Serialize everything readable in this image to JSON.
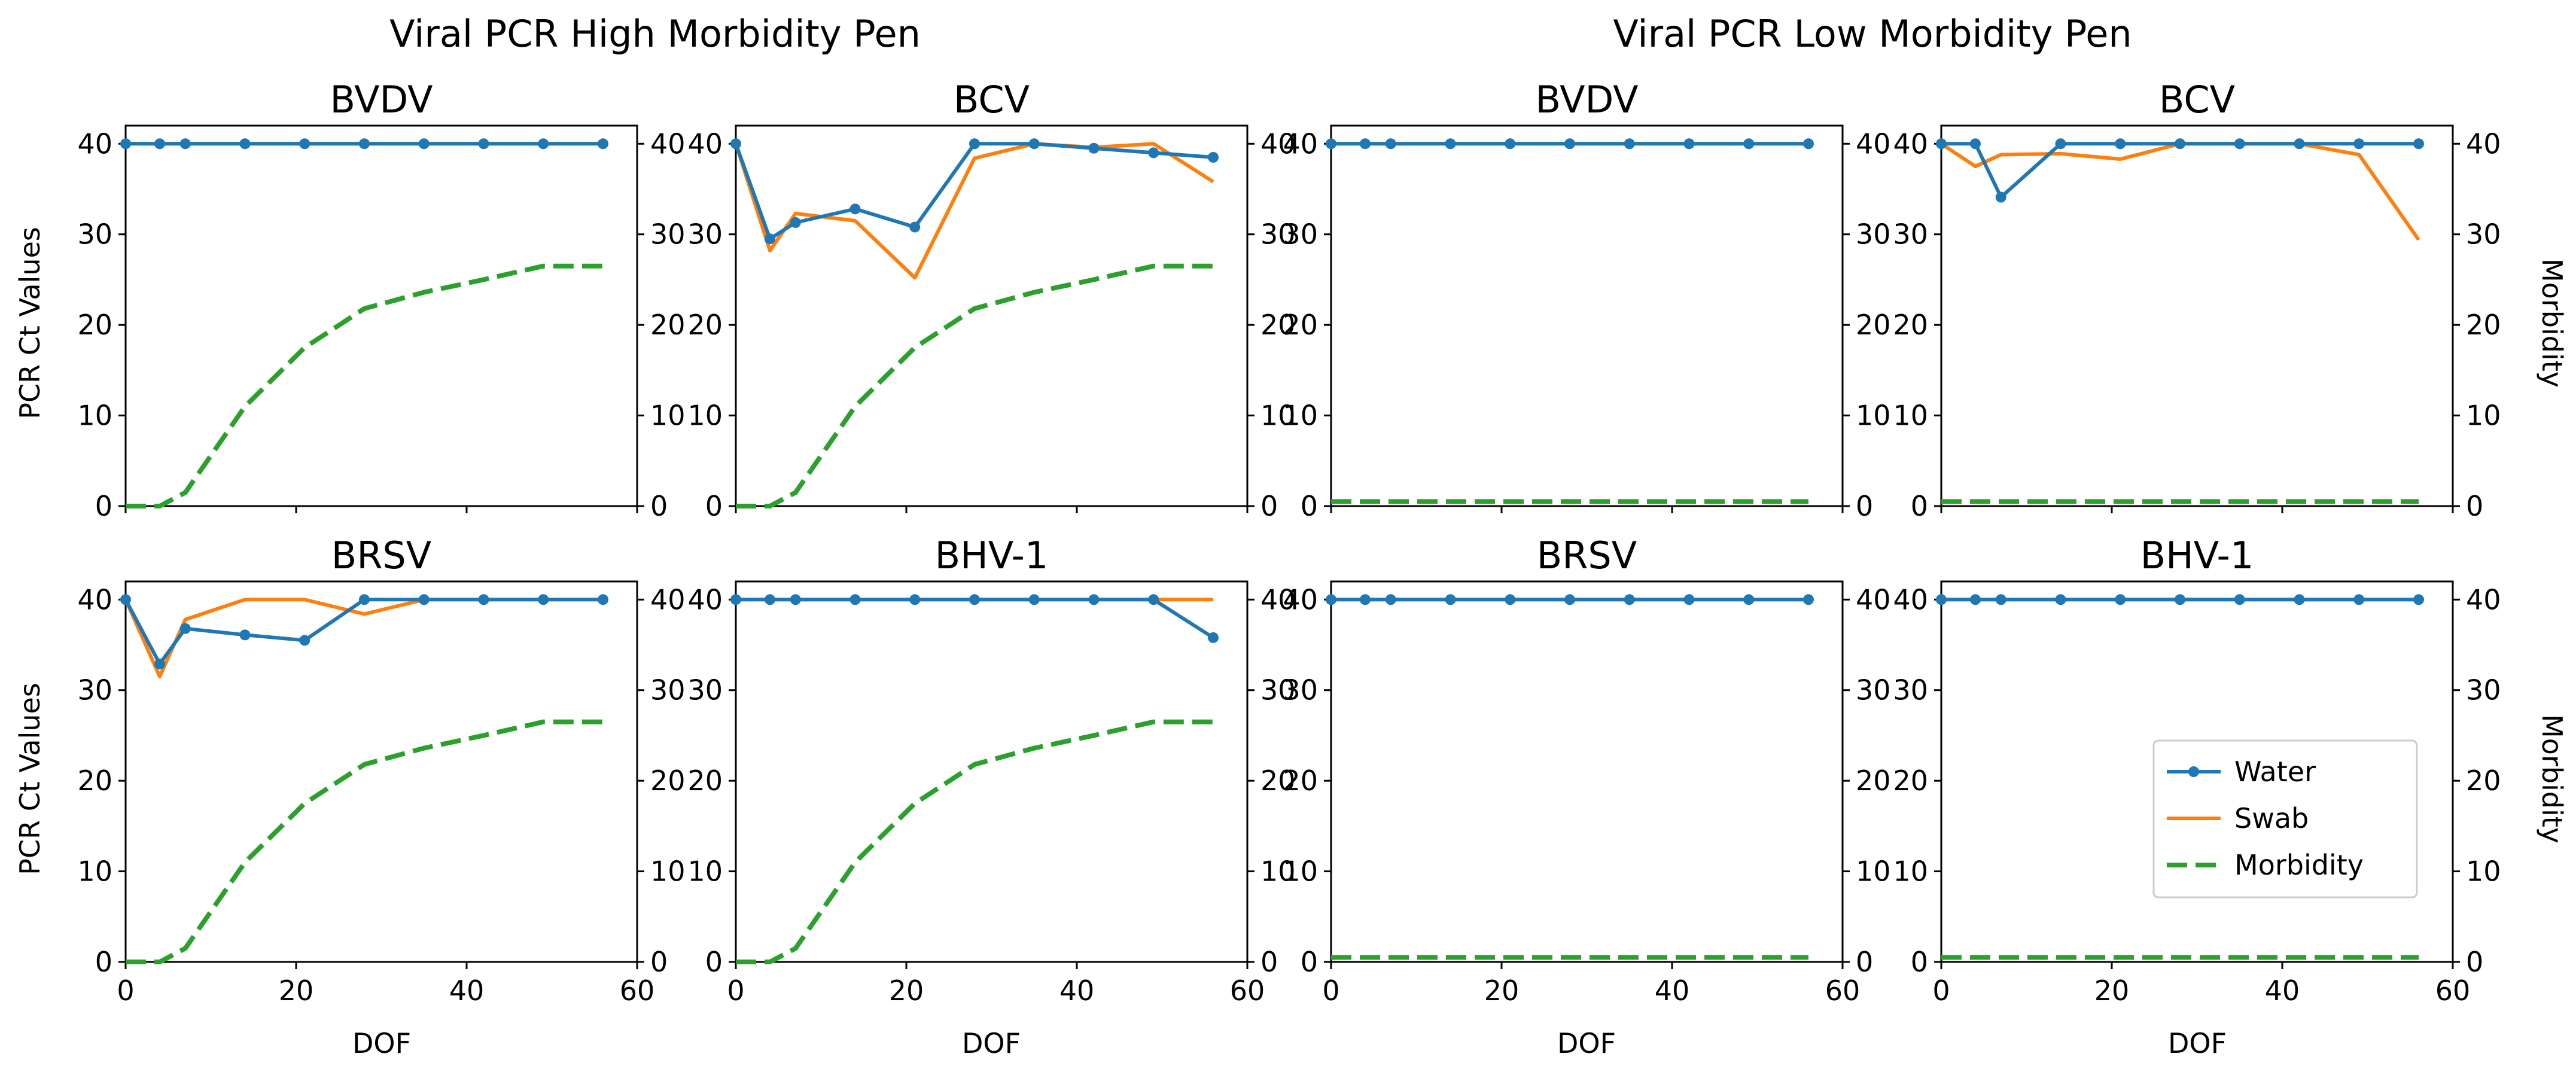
{
  "figure": {
    "suptitles": [
      "Viral PCR High Morbidity Pen",
      "Viral PCR Low Morbidity Pen"
    ],
    "ylabel_left": "PCR Ct Values",
    "ylabel_right": "Morbidity",
    "xlabel": "DOF"
  },
  "chart_data": {
    "type": "line",
    "x": [
      0,
      4,
      7,
      14,
      21,
      28,
      35,
      42,
      49,
      56
    ],
    "xlim": [
      0,
      60
    ],
    "ylim": [
      0,
      42
    ],
    "xticks": [
      0,
      20,
      40,
      60
    ],
    "yticks": [
      0,
      10,
      20,
      30,
      40
    ],
    "colors": {
      "Water": "#1f77b4",
      "Swab": "#ff7f0e",
      "Morbidity": "#2ca02c"
    },
    "legend": [
      "Water",
      "Swab",
      "Morbidity"
    ],
    "legend_location": "lower-right of bottom-right panel",
    "panels": [
      {
        "title": "BVDV",
        "group": "Viral PCR High Morbidity Pen",
        "series": [
          {
            "name": "Water",
            "values": [
              40,
              40,
              40,
              40,
              40,
              40,
              40,
              40,
              40,
              40
            ]
          },
          {
            "name": "Swab",
            "values": [
              40,
              40,
              40,
              40,
              40,
              40,
              40,
              40,
              40,
              40
            ]
          },
          {
            "name": "Morbidity",
            "values": [
              0,
              0,
              1.5,
              11,
              17.5,
              21.8,
              23.6,
              25,
              26.5,
              26.5
            ]
          }
        ]
      },
      {
        "title": "BCV",
        "group": "Viral PCR High Morbidity Pen",
        "series": [
          {
            "name": "Water",
            "values": [
              40,
              29.5,
              31.3,
              32.8,
              30.8,
              40,
              40,
              39.5,
              39,
              38.5
            ]
          },
          {
            "name": "Swab",
            "values": [
              40,
              28.2,
              32.3,
              31.5,
              25.2,
              38.4,
              40,
              39.6,
              40,
              35.8
            ]
          },
          {
            "name": "Morbidity",
            "values": [
              0,
              0,
              1.5,
              11,
              17.5,
              21.8,
              23.6,
              25,
              26.5,
              26.5
            ]
          }
        ]
      },
      {
        "title": "BVDV",
        "group": "Viral PCR Low Morbidity Pen",
        "series": [
          {
            "name": "Water",
            "values": [
              40,
              40,
              40,
              40,
              40,
              40,
              40,
              40,
              40,
              40
            ]
          },
          {
            "name": "Swab",
            "values": [
              40,
              40,
              40,
              40,
              40,
              40,
              40,
              40,
              40,
              40
            ]
          },
          {
            "name": "Morbidity",
            "values": [
              0.5,
              0.5,
              0.5,
              0.5,
              0.5,
              0.5,
              0.5,
              0.5,
              0.5,
              0.5
            ]
          }
        ]
      },
      {
        "title": "BCV",
        "group": "Viral PCR Low Morbidity Pen",
        "series": [
          {
            "name": "Water",
            "values": [
              40,
              40,
              34.1,
              40,
              40,
              40,
              40,
              40,
              40,
              40
            ]
          },
          {
            "name": "Swab",
            "values": [
              40,
              37.5,
              38.8,
              38.9,
              38.3,
              40,
              40,
              40,
              38.8,
              29.4
            ]
          },
          {
            "name": "Morbidity",
            "values": [
              0.5,
              0.5,
              0.5,
              0.5,
              0.5,
              0.5,
              0.5,
              0.5,
              0.5,
              0.5
            ]
          }
        ]
      },
      {
        "title": "BRSV",
        "group": "Viral PCR High Morbidity Pen",
        "series": [
          {
            "name": "Water",
            "values": [
              40,
              32.9,
              36.8,
              36.1,
              35.5,
              40,
              40,
              40,
              40,
              40
            ]
          },
          {
            "name": "Swab",
            "values": [
              40,
              31.5,
              37.8,
              40,
              40,
              38.4,
              40,
              40,
              40,
              40
            ]
          },
          {
            "name": "Morbidity",
            "values": [
              0,
              0,
              1.5,
              11,
              17.5,
              21.8,
              23.6,
              25,
              26.5,
              26.5
            ]
          }
        ]
      },
      {
        "title": "BHV-1",
        "group": "Viral PCR High Morbidity Pen",
        "series": [
          {
            "name": "Water",
            "values": [
              40,
              40,
              40,
              40,
              40,
              40,
              40,
              40,
              40,
              35.8
            ]
          },
          {
            "name": "Swab",
            "values": [
              40,
              40,
              40,
              40,
              40,
              40,
              40,
              40,
              40,
              40
            ]
          },
          {
            "name": "Morbidity",
            "values": [
              0,
              0,
              1.5,
              11,
              17.5,
              21.8,
              23.6,
              25,
              26.5,
              26.5
            ]
          }
        ]
      },
      {
        "title": "BRSV",
        "group": "Viral PCR Low Morbidity Pen",
        "series": [
          {
            "name": "Water",
            "values": [
              40,
              40,
              40,
              40,
              40,
              40,
              40,
              40,
              40,
              40
            ]
          },
          {
            "name": "Swab",
            "values": [
              40,
              40,
              40,
              40,
              40,
              40,
              40,
              40,
              40,
              40
            ]
          },
          {
            "name": "Morbidity",
            "values": [
              0.5,
              0.5,
              0.5,
              0.5,
              0.5,
              0.5,
              0.5,
              0.5,
              0.5,
              0.5
            ]
          }
        ]
      },
      {
        "title": "BHV-1",
        "group": "Viral PCR Low Morbidity Pen",
        "series": [
          {
            "name": "Water",
            "values": [
              40,
              40,
              40,
              40,
              40,
              40,
              40,
              40,
              40,
              40
            ]
          },
          {
            "name": "Swab",
            "values": [
              40,
              40,
              40,
              40,
              40,
              40,
              40,
              40,
              40,
              40
            ]
          },
          {
            "name": "Morbidity",
            "values": [
              0.5,
              0.5,
              0.5,
              0.5,
              0.5,
              0.5,
              0.5,
              0.5,
              0.5,
              0.5
            ]
          }
        ]
      }
    ]
  }
}
